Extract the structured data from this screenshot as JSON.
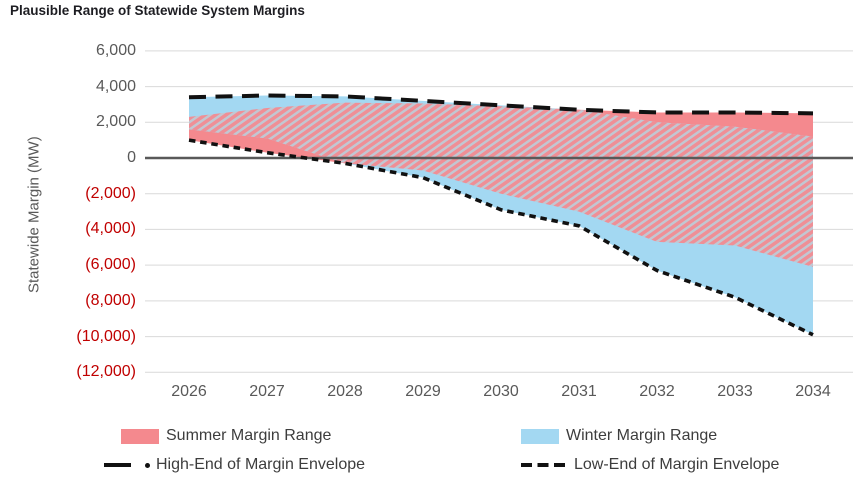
{
  "chart_data": {
    "type": "area",
    "title": "Plausible Range of Statewide System Margins",
    "ylabel": "Statewide Margin (MW)",
    "xlabel": "",
    "grid": true,
    "legend_position": "bottom-two-column",
    "x": [
      2026,
      2027,
      2028,
      2029,
      2030,
      2031,
      2032,
      2033,
      2034
    ],
    "ylim": [
      -12000,
      6000
    ],
    "yticks": [
      {
        "value": 6000,
        "label": "6,000",
        "color": "#595959"
      },
      {
        "value": 4000,
        "label": "4,000",
        "color": "#595959"
      },
      {
        "value": 2000,
        "label": "2,000",
        "color": "#595959"
      },
      {
        "value": 0,
        "label": "0",
        "color": "#595959"
      },
      {
        "value": -2000,
        "label": "(2,000)",
        "color": "#c00000"
      },
      {
        "value": -4000,
        "label": "(4,000)",
        "color": "#c00000"
      },
      {
        "value": -6000,
        "label": "(6,000)",
        "color": "#c00000"
      },
      {
        "value": -8000,
        "label": "(8,000)",
        "color": "#c00000"
      },
      {
        "value": -10000,
        "label": "(10,000)",
        "color": "#c00000"
      },
      {
        "value": -12000,
        "label": "(12,000)",
        "color": "#c00000"
      }
    ],
    "series": [
      {
        "name": "Summer Margin Range",
        "type": "area-range",
        "color": "#f4898e",
        "high": [
          2300,
          2800,
          3100,
          3050,
          2900,
          2700,
          2550,
          2550,
          2500
        ],
        "low": [
          1000,
          300,
          -300,
          -700,
          -2000,
          -3000,
          -4700,
          -4900,
          -6100
        ]
      },
      {
        "name": "Winter Margin Range",
        "type": "area-range",
        "color": "#a3d8f2",
        "high": [
          3400,
          3500,
          3450,
          3200,
          2950,
          2700,
          2000,
          1750,
          1200
        ],
        "low": [
          1600,
          1100,
          -300,
          -1100,
          -2900,
          -3800,
          -6300,
          -7800,
          -9900
        ]
      },
      {
        "name": "High-End of Margin Envelope",
        "type": "line",
        "dash": "long-dash",
        "color": "#111111",
        "values": [
          3400,
          3500,
          3450,
          3200,
          2950,
          2700,
          2550,
          2550,
          2500
        ]
      },
      {
        "name": "Low-End of Margin Envelope",
        "type": "line",
        "dash": "short-dash",
        "color": "#111111",
        "values": [
          1000,
          300,
          -300,
          -1100,
          -2900,
          -3800,
          -6300,
          -7800,
          -9900
        ]
      }
    ],
    "overlap_fill": {
      "background": "#c2c7d2",
      "stripe": "#ef8f96"
    },
    "zero_line_color": "#595959",
    "gridline_color": "#d9d9d9"
  }
}
